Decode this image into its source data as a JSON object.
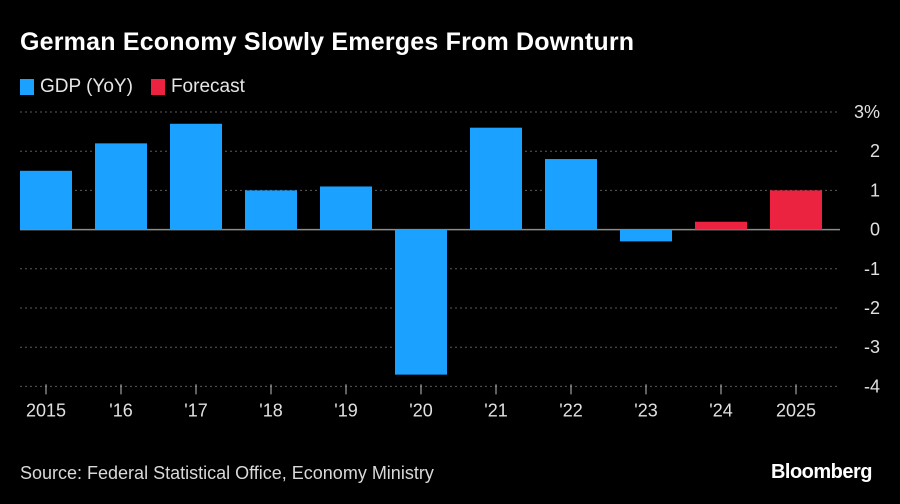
{
  "title": "German Economy Slowly Emerges From Downturn",
  "legend": [
    {
      "label": "GDP (YoY)",
      "color": "#1ba1ff"
    },
    {
      "label": "Forecast",
      "color": "#ec2340"
    }
  ],
  "source": "Source: Federal Statistical Office, Economy Ministry",
  "brand": "Bloomberg",
  "chart_data": {
    "type": "bar",
    "categories": [
      "2015",
      "'16",
      "'17",
      "'18",
      "'19",
      "'20",
      "'21",
      "'22",
      "'23",
      "'24",
      "2025"
    ],
    "series": [
      {
        "name": "GDP (YoY)",
        "color": "#1ba1ff",
        "values": [
          1.5,
          2.2,
          2.7,
          1.0,
          1.1,
          -3.7,
          2.6,
          1.8,
          -0.3,
          null,
          null
        ]
      },
      {
        "name": "Forecast",
        "color": "#ec2340",
        "values": [
          null,
          null,
          null,
          null,
          null,
          null,
          null,
          null,
          null,
          0.2,
          1.0
        ]
      }
    ],
    "ylim": [
      -4,
      3
    ],
    "yticks": [
      3,
      2,
      1,
      0,
      -1,
      -2,
      -3,
      -4
    ],
    "ytick_labels": [
      "3%",
      "2",
      "1",
      "0",
      "-1",
      "-2",
      "-3",
      "-4"
    ],
    "grid": true,
    "legend_position": "top-left"
  }
}
